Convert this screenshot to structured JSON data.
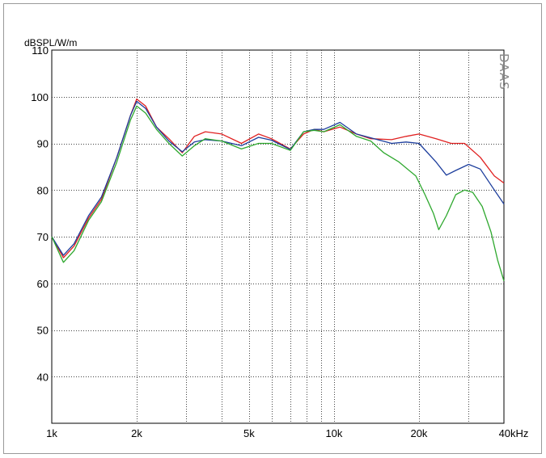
{
  "chart_data": {
    "type": "line",
    "ylabel": "dBSPL/W/m",
    "watermark": "DAAS",
    "x_scale": "log",
    "xlim": [
      1000,
      40000
    ],
    "ylim": [
      30,
      110
    ],
    "grid": true,
    "x_ticks": [
      {
        "value": 1000,
        "label": "1k"
      },
      {
        "value": 2000,
        "label": "2k"
      },
      {
        "value": 5000,
        "label": "5k"
      },
      {
        "value": 10000,
        "label": "10k"
      },
      {
        "value": 20000,
        "label": "20k"
      },
      {
        "value": 40000,
        "label": "40kHz"
      }
    ],
    "x_minor_grid": [
      3000,
      4000,
      6000,
      7000,
      8000,
      9000,
      30000
    ],
    "y_ticks": [
      {
        "value": 40,
        "label": "40"
      },
      {
        "value": 50,
        "label": "50"
      },
      {
        "value": 60,
        "label": "60"
      },
      {
        "value": 70,
        "label": "70"
      },
      {
        "value": 80,
        "label": "80"
      },
      {
        "value": 90,
        "label": "90"
      },
      {
        "value": 100,
        "label": "100"
      },
      {
        "value": 110,
        "label": "110"
      }
    ],
    "series": [
      {
        "color": "#e02020",
        "points": [
          [
            1000,
            70
          ],
          [
            1100,
            65.5
          ],
          [
            1200,
            68
          ],
          [
            1350,
            74
          ],
          [
            1500,
            78
          ],
          [
            1700,
            87
          ],
          [
            1900,
            96
          ],
          [
            2000,
            99.5
          ],
          [
            2150,
            98
          ],
          [
            2350,
            93.5
          ],
          [
            2600,
            91
          ],
          [
            2900,
            88
          ],
          [
            3200,
            91.5
          ],
          [
            3500,
            92.5
          ],
          [
            4000,
            92
          ],
          [
            4700,
            90
          ],
          [
            5400,
            92
          ],
          [
            6000,
            91
          ],
          [
            7000,
            88.8
          ],
          [
            7800,
            92
          ],
          [
            8500,
            93
          ],
          [
            9200,
            92.5
          ],
          [
            10500,
            93.5
          ],
          [
            12000,
            92
          ],
          [
            13500,
            91
          ],
          [
            16000,
            90.8
          ],
          [
            18000,
            91.5
          ],
          [
            20000,
            92
          ],
          [
            23000,
            91
          ],
          [
            26000,
            90
          ],
          [
            29000,
            90
          ],
          [
            33000,
            87
          ],
          [
            37000,
            83
          ],
          [
            40000,
            81.5
          ]
        ]
      },
      {
        "color": "#1c3d9c",
        "points": [
          [
            1000,
            70
          ],
          [
            1100,
            66
          ],
          [
            1200,
            68.5
          ],
          [
            1350,
            74.5
          ],
          [
            1500,
            78.5
          ],
          [
            1700,
            87
          ],
          [
            1900,
            96
          ],
          [
            2000,
            99
          ],
          [
            2150,
            97.5
          ],
          [
            2350,
            93.5
          ],
          [
            2600,
            90.5
          ],
          [
            2900,
            88.2
          ],
          [
            3200,
            90.3
          ],
          [
            3500,
            90.8
          ],
          [
            4000,
            90.5
          ],
          [
            4700,
            89.5
          ],
          [
            5400,
            91.3
          ],
          [
            6000,
            90.7
          ],
          [
            7000,
            88.7
          ],
          [
            7800,
            92.5
          ],
          [
            8500,
            93
          ],
          [
            9200,
            93
          ],
          [
            10500,
            94.5
          ],
          [
            12000,
            92
          ],
          [
            13500,
            91.2
          ],
          [
            16000,
            90
          ],
          [
            18000,
            90.3
          ],
          [
            20000,
            90
          ],
          [
            23000,
            86
          ],
          [
            25000,
            83.2
          ],
          [
            27000,
            84.2
          ],
          [
            30000,
            85.5
          ],
          [
            33000,
            84.5
          ],
          [
            37000,
            80
          ],
          [
            40000,
            77
          ]
        ]
      },
      {
        "color": "#2ea82e",
        "points": [
          [
            1000,
            70
          ],
          [
            1100,
            64.5
          ],
          [
            1200,
            67
          ],
          [
            1350,
            73.5
          ],
          [
            1500,
            77.5
          ],
          [
            1700,
            86
          ],
          [
            1900,
            95
          ],
          [
            2000,
            98
          ],
          [
            2150,
            96.5
          ],
          [
            2350,
            93
          ],
          [
            2600,
            90
          ],
          [
            2900,
            87.3
          ],
          [
            3200,
            89.5
          ],
          [
            3500,
            91
          ],
          [
            4000,
            90.5
          ],
          [
            4700,
            88.8
          ],
          [
            5400,
            90
          ],
          [
            6000,
            90
          ],
          [
            7000,
            88.5
          ],
          [
            7800,
            92.5
          ],
          [
            8500,
            92.8
          ],
          [
            9200,
            92.5
          ],
          [
            10500,
            94
          ],
          [
            12000,
            91.5
          ],
          [
            13500,
            90.5
          ],
          [
            15000,
            88
          ],
          [
            17000,
            86
          ],
          [
            19500,
            83
          ],
          [
            21000,
            79
          ],
          [
            22500,
            75
          ],
          [
            23500,
            71.5
          ],
          [
            25000,
            74.5
          ],
          [
            27000,
            79
          ],
          [
            29000,
            80
          ],
          [
            31000,
            79.5
          ],
          [
            33500,
            76.5
          ],
          [
            36000,
            71
          ],
          [
            38000,
            65
          ],
          [
            40000,
            60.5
          ]
        ]
      }
    ]
  }
}
